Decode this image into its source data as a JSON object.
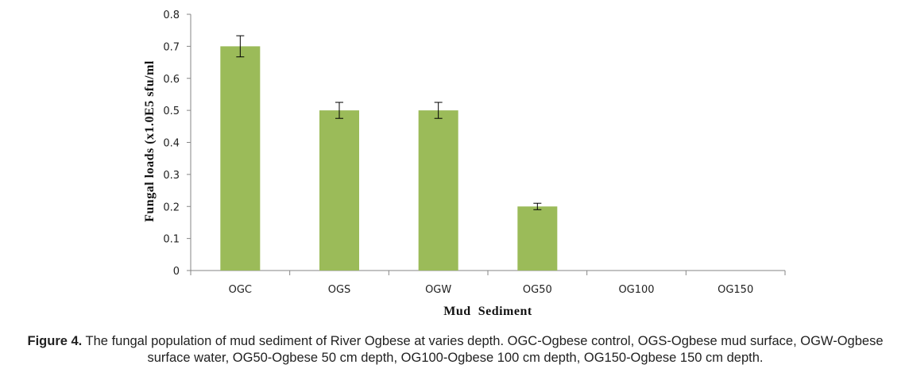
{
  "chart_data": {
    "type": "bar",
    "categories": [
      "OGC",
      "OGS",
      "OGW",
      "OG50",
      "OG100",
      "OG150"
    ],
    "values": [
      0.7,
      0.5,
      0.5,
      0.2,
      0,
      0
    ],
    "error": [
      0.033,
      0.025,
      0.025,
      0.01,
      0,
      0
    ],
    "xlabel": "Mud  Sediment",
    "ylabel": "Fungal  loads  (x1.0E5  sfu/ml",
    "ylim": [
      0,
      0.8
    ],
    "yticks": [
      "0",
      "0.1",
      "0.2",
      "0.3",
      "0.4",
      "0.5",
      "0.6",
      "0.7",
      "0.8"
    ],
    "bar_color": "#9bbb59",
    "grid": false
  },
  "caption": {
    "label": "Figure 4.",
    "text": " The fungal population of mud sediment of River Ogbese at varies depth. OGC-Ogbese control, OGS-Ogbese mud surface, OGW-Ogbese surface water, OG50-Ogbese 50 cm depth, OG100-Ogbese 100 cm depth, OG150-Ogbese 150 cm depth."
  }
}
